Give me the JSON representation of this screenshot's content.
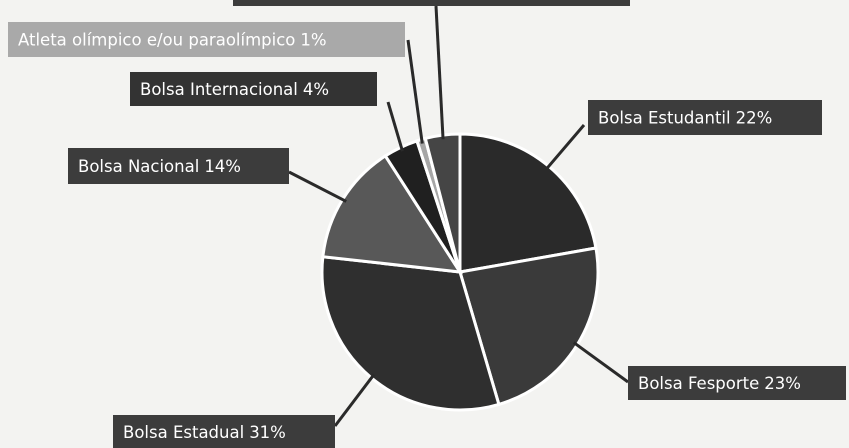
{
  "chart_data": {
    "type": "pie",
    "categories": [
      "Bolsa Estudantil",
      "Bolsa Fesporte",
      "Bolsa Estadual",
      "Bolsa Nacional",
      "Bolsa Internacional",
      "Atleta olímpico e/ou paraolímpico",
      null
    ],
    "values": [
      22,
      23,
      31,
      14,
      4,
      1,
      4
    ],
    "value_labels": [
      "22%",
      "23%",
      "31%",
      "14%",
      "4%",
      "1%",
      null
    ],
    "colors": [
      "#2a2a2a",
      "#3a3a3a",
      "#2f2f2f",
      "#585858",
      "#202020",
      "#a6a6a6",
      "#454545"
    ]
  }
}
